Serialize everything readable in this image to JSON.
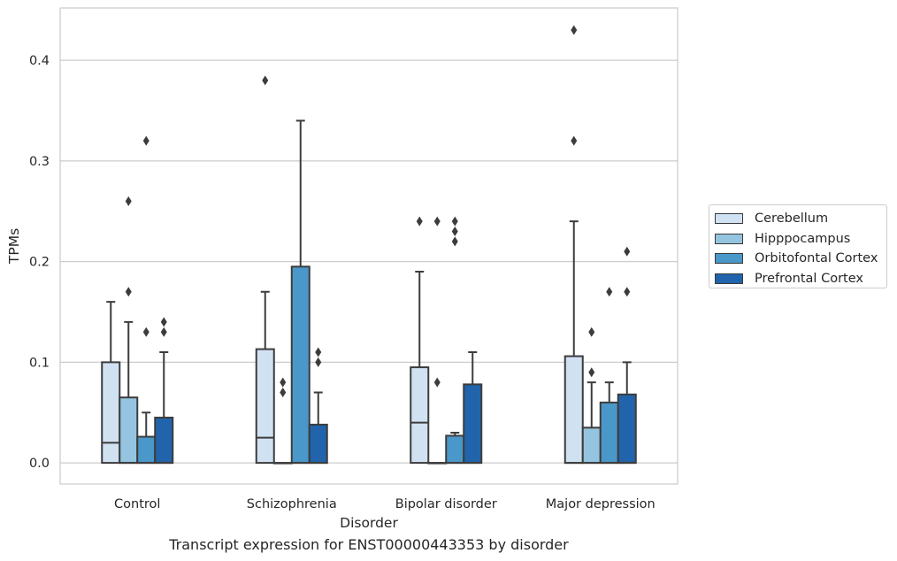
{
  "chart_data": {
    "type": "box",
    "xlabel": "Disorder",
    "ylabel": "TPMs",
    "ylim": [
      -0.021,
      0.452
    ],
    "yticks": [
      0.0,
      0.1,
      0.2,
      0.3,
      0.4
    ],
    "ytick_labels": [
      "0.0",
      "0.1",
      "0.2",
      "0.3",
      "0.4"
    ],
    "grid": true,
    "legend_position": "right",
    "categories": [
      "Control",
      "Schizophrenia",
      "Bipolar disorder",
      "Major depression"
    ],
    "series": [
      {
        "name": "Cerebellum",
        "color": "#d0e1f2",
        "boxes": [
          {
            "q1": 0,
            "median": 0.02,
            "q3": 0.1,
            "whisker_low": 0,
            "whisker_high": 0.16,
            "outliers": []
          },
          {
            "q1": 0,
            "median": 0.025,
            "q3": 0.113,
            "whisker_low": 0,
            "whisker_high": 0.17,
            "outliers": [
              0.38
            ]
          },
          {
            "q1": 0,
            "median": 0.04,
            "q3": 0.095,
            "whisker_low": 0,
            "whisker_high": 0.19,
            "outliers": [
              0.24
            ]
          },
          {
            "q1": 0,
            "median": 0,
            "q3": 0.106,
            "whisker_low": 0,
            "whisker_high": 0.24,
            "outliers": [
              0.32,
              0.43
            ]
          }
        ]
      },
      {
        "name": "Hipppocampus",
        "color": "#94c4df",
        "boxes": [
          {
            "q1": 0,
            "median": 0,
            "q3": 0.065,
            "whisker_low": 0,
            "whisker_high": 0.14,
            "outliers": [
              0.17,
              0.26
            ]
          },
          {
            "q1": 0,
            "median": 0,
            "q3": 0,
            "whisker_low": 0,
            "whisker_high": 0,
            "outliers": [
              0.07,
              0.08
            ]
          },
          {
            "q1": 0,
            "median": 0,
            "q3": 0,
            "whisker_low": 0,
            "whisker_high": 0,
            "outliers": [
              0.08,
              0.24
            ]
          },
          {
            "q1": 0,
            "median": 0,
            "q3": 0.035,
            "whisker_low": 0,
            "whisker_high": 0.08,
            "outliers": [
              0.09,
              0.13
            ]
          }
        ]
      },
      {
        "name": "Orbitofontal Cortex",
        "color": "#4a98c9",
        "boxes": [
          {
            "q1": 0,
            "median": 0,
            "q3": 0.026,
            "whisker_low": 0,
            "whisker_high": 0.05,
            "outliers": [
              0.13,
              0.32
            ]
          },
          {
            "q1": 0,
            "median": 0,
            "q3": 0.195,
            "whisker_low": 0,
            "whisker_high": 0.34,
            "outliers": []
          },
          {
            "q1": 0,
            "median": 0,
            "q3": 0.027,
            "whisker_low": 0,
            "whisker_high": 0.03,
            "outliers": [
              0.22,
              0.23,
              0.24
            ]
          },
          {
            "q1": 0,
            "median": 0,
            "q3": 0.06,
            "whisker_low": 0,
            "whisker_high": 0.08,
            "outliers": [
              0.17
            ]
          }
        ]
      },
      {
        "name": "Prefrontal Cortex",
        "color": "#2164ab",
        "boxes": [
          {
            "q1": 0,
            "median": 0,
            "q3": 0.045,
            "whisker_low": 0,
            "whisker_high": 0.11,
            "outliers": [
              0.13,
              0.14
            ]
          },
          {
            "q1": 0,
            "median": 0,
            "q3": 0.038,
            "whisker_low": 0,
            "whisker_high": 0.07,
            "outliers": [
              0.1,
              0.11
            ]
          },
          {
            "q1": 0,
            "median": 0,
            "q3": 0.078,
            "whisker_low": 0,
            "whisker_high": 0.11,
            "outliers": []
          },
          {
            "q1": 0,
            "median": 0,
            "q3": 0.068,
            "whisker_low": 0,
            "whisker_high": 0.1,
            "outliers": [
              0.17,
              0.21
            ]
          }
        ]
      }
    ]
  },
  "caption": "Transcript expression for ENST00000443353 by disorder"
}
